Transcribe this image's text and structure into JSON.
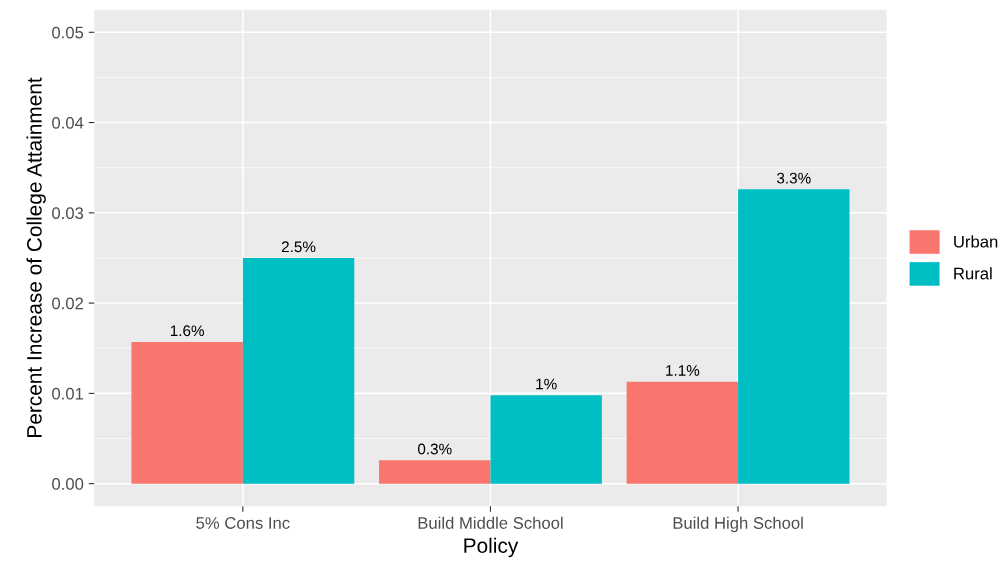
{
  "chart_data": {
    "type": "bar",
    "xlabel": "Policy",
    "ylabel": "Percent Increase of College Attainment",
    "categories": [
      "5% Cons Inc",
      "Build Middle School",
      "Build High School"
    ],
    "series": [
      {
        "name": "Urban",
        "color": "#f8766d",
        "values": [
          0.0157,
          0.0026,
          0.0113
        ],
        "value_labels": [
          "1.6%",
          "0.3%",
          "1.1%"
        ]
      },
      {
        "name": "Rural",
        "color": "#00bfc4",
        "values": [
          0.025,
          0.0098,
          0.0326
        ],
        "value_labels": [
          "2.5%",
          "1%",
          "3.3%"
        ]
      }
    ],
    "ylim": [
      -0.0025,
      0.0525
    ],
    "yticks": [
      {
        "value": 0,
        "label": "0.00"
      },
      {
        "value": 0.01,
        "label": "0.01"
      },
      {
        "value": 0.02,
        "label": "0.02"
      },
      {
        "value": 0.03,
        "label": "0.03"
      },
      {
        "value": 0.04,
        "label": "0.04"
      },
      {
        "value": 0.05,
        "label": "0.05"
      }
    ],
    "grid": true,
    "legend": "right"
  }
}
